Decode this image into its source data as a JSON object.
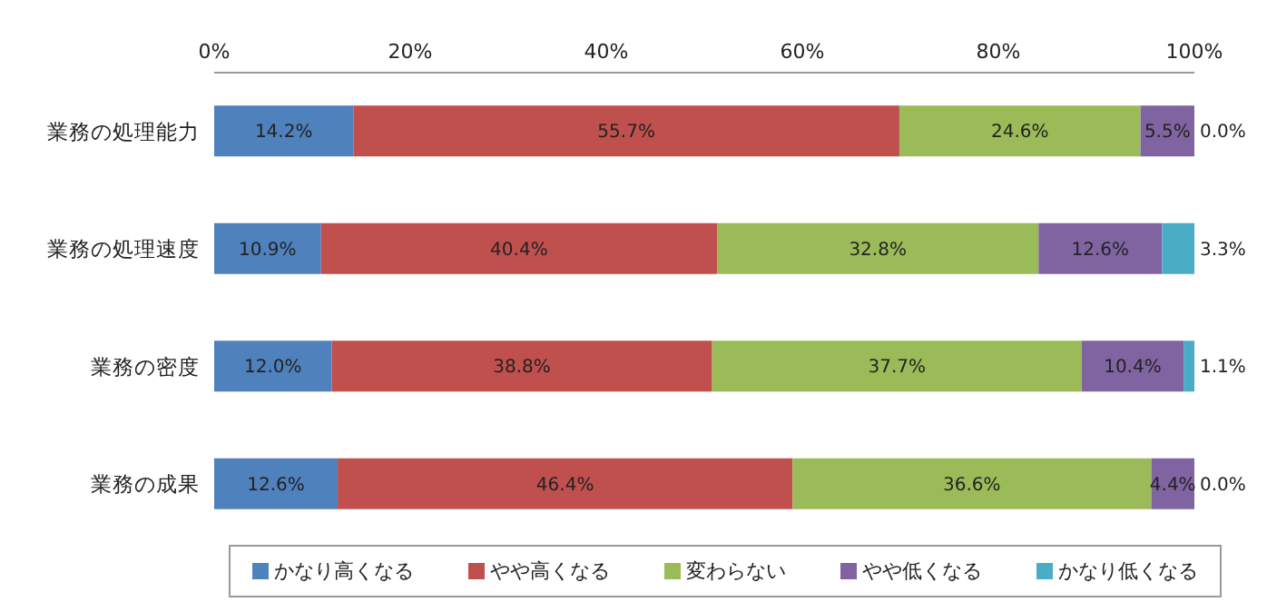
{
  "chart_data": {
    "type": "bar",
    "orientation": "horizontal",
    "stacked": true,
    "categories": [
      "業務の処理能力",
      "業務の処理速度",
      "業務の密度",
      "業務の成果"
    ],
    "series": [
      {
        "name": "かなり高くなる",
        "color": "#4f81bd",
        "values": [
          14.2,
          10.9,
          12.0,
          12.6
        ],
        "value_labels": [
          "14.2%",
          "10.9%",
          "12.0%",
          "12.6%"
        ]
      },
      {
        "name": "やや高くなる",
        "color": "#c0504d",
        "values": [
          55.7,
          40.4,
          38.8,
          46.4
        ],
        "value_labels": [
          "55.7%",
          "40.4%",
          "38.8%",
          "46.4%"
        ]
      },
      {
        "name": "変わらない",
        "color": "#9bbb59",
        "values": [
          24.6,
          32.8,
          37.7,
          36.6
        ],
        "value_labels": [
          "24.6%",
          "32.8%",
          "37.7%",
          "36.6%"
        ]
      },
      {
        "name": "やや低くなる",
        "color": "#8064a2",
        "values": [
          5.5,
          12.6,
          10.4,
          4.4
        ],
        "value_labels": [
          "5.5%",
          "12.6%",
          "10.4%",
          "4.4%"
        ]
      },
      {
        "name": "かなり低くなる",
        "color": "#4bacc6",
        "values": [
          0.0,
          3.3,
          1.1,
          0.0
        ],
        "value_labels": [
          "0.0%",
          "3.3%",
          "1.1%",
          "0.0%"
        ]
      }
    ],
    "xlim": [
      0,
      100
    ],
    "xticks": [
      {
        "value": 0,
        "label": "0%"
      },
      {
        "value": 20,
        "label": "20%"
      },
      {
        "value": 40,
        "label": "40%"
      },
      {
        "value": 60,
        "label": "60%"
      },
      {
        "value": 80,
        "label": "80%"
      },
      {
        "value": 100,
        "label": "100%"
      }
    ],
    "grid": false,
    "legend": "bottom"
  }
}
